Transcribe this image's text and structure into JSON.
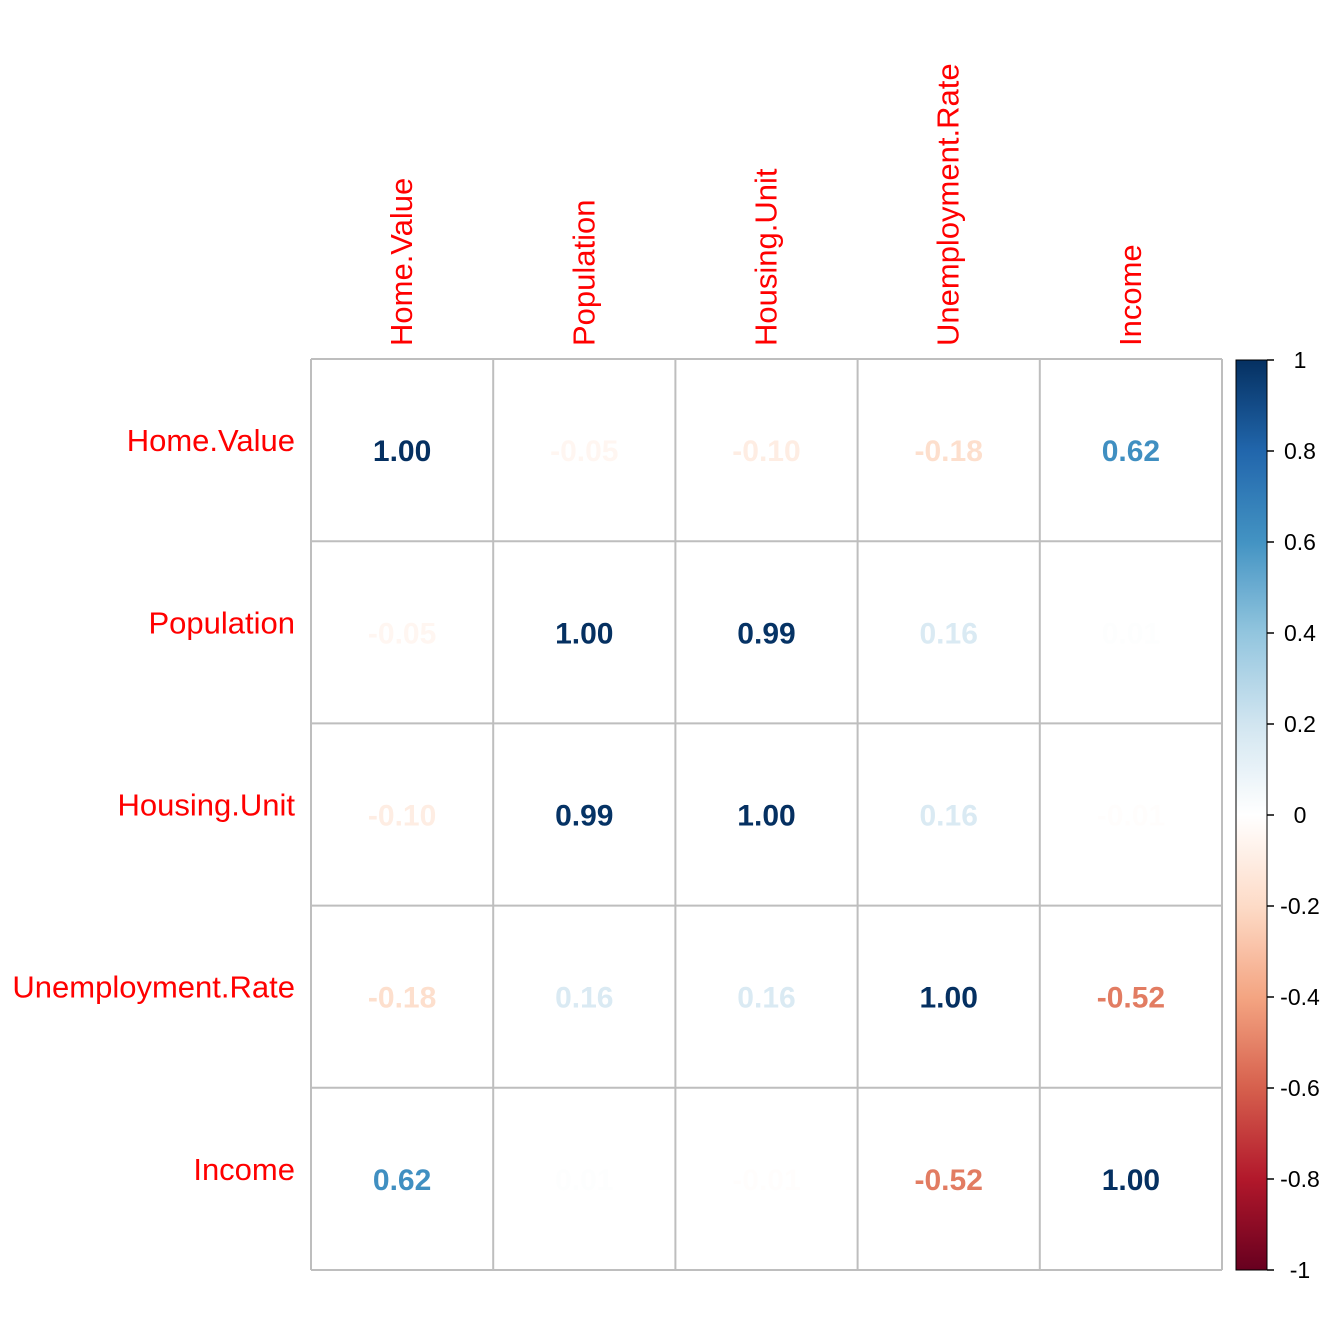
{
  "chart_data": {
    "type": "heatmap",
    "variables": [
      "Home.Value",
      "Population",
      "Housing.Unit",
      "Unemployment.Rate",
      "Income"
    ],
    "matrix": [
      [
        1.0,
        -0.05,
        -0.1,
        -0.18,
        0.62
      ],
      [
        -0.05,
        1.0,
        0.99,
        0.16,
        0.01
      ],
      [
        -0.1,
        0.99,
        1.0,
        0.16,
        -0.01
      ],
      [
        -0.18,
        0.16,
        0.16,
        1.0,
        -0.52
      ],
      [
        0.62,
        0.01,
        -0.01,
        -0.52,
        1.0
      ]
    ],
    "labels": [
      [
        "1.00",
        "-0.05",
        "-0.10",
        "-0.18",
        "0.62"
      ],
      [
        "-0.05",
        "1.00",
        "0.99",
        "0.16",
        "0.01"
      ],
      [
        "-0.10",
        "0.99",
        "1.00",
        "0.16",
        "-0.01"
      ],
      [
        "-0.18",
        "0.16",
        "0.16",
        "1.00",
        "-0.52"
      ],
      [
        "0.62",
        "0.01",
        "-0.01",
        "-0.52",
        "1.00"
      ]
    ],
    "colorbar": {
      "range": [
        -1,
        1
      ],
      "ticks": [
        1,
        0.8,
        0.6,
        0.4,
        0.2,
        0,
        -0.2,
        -0.4,
        -0.6,
        -0.8,
        -1
      ],
      "tick_labels": [
        "1",
        "0.8",
        "0.6",
        "0.4",
        "0.2",
        "0",
        "-0.2",
        "-0.4",
        "-0.6",
        "-0.8",
        "-1"
      ],
      "placement": "right"
    },
    "colors": {
      "negative_end": "#67001F",
      "positive_end": "#053061",
      "label_color": "#FF0000",
      "grid_color": "#BEBEBE"
    },
    "title": "",
    "xlabel": "",
    "ylabel": ""
  }
}
